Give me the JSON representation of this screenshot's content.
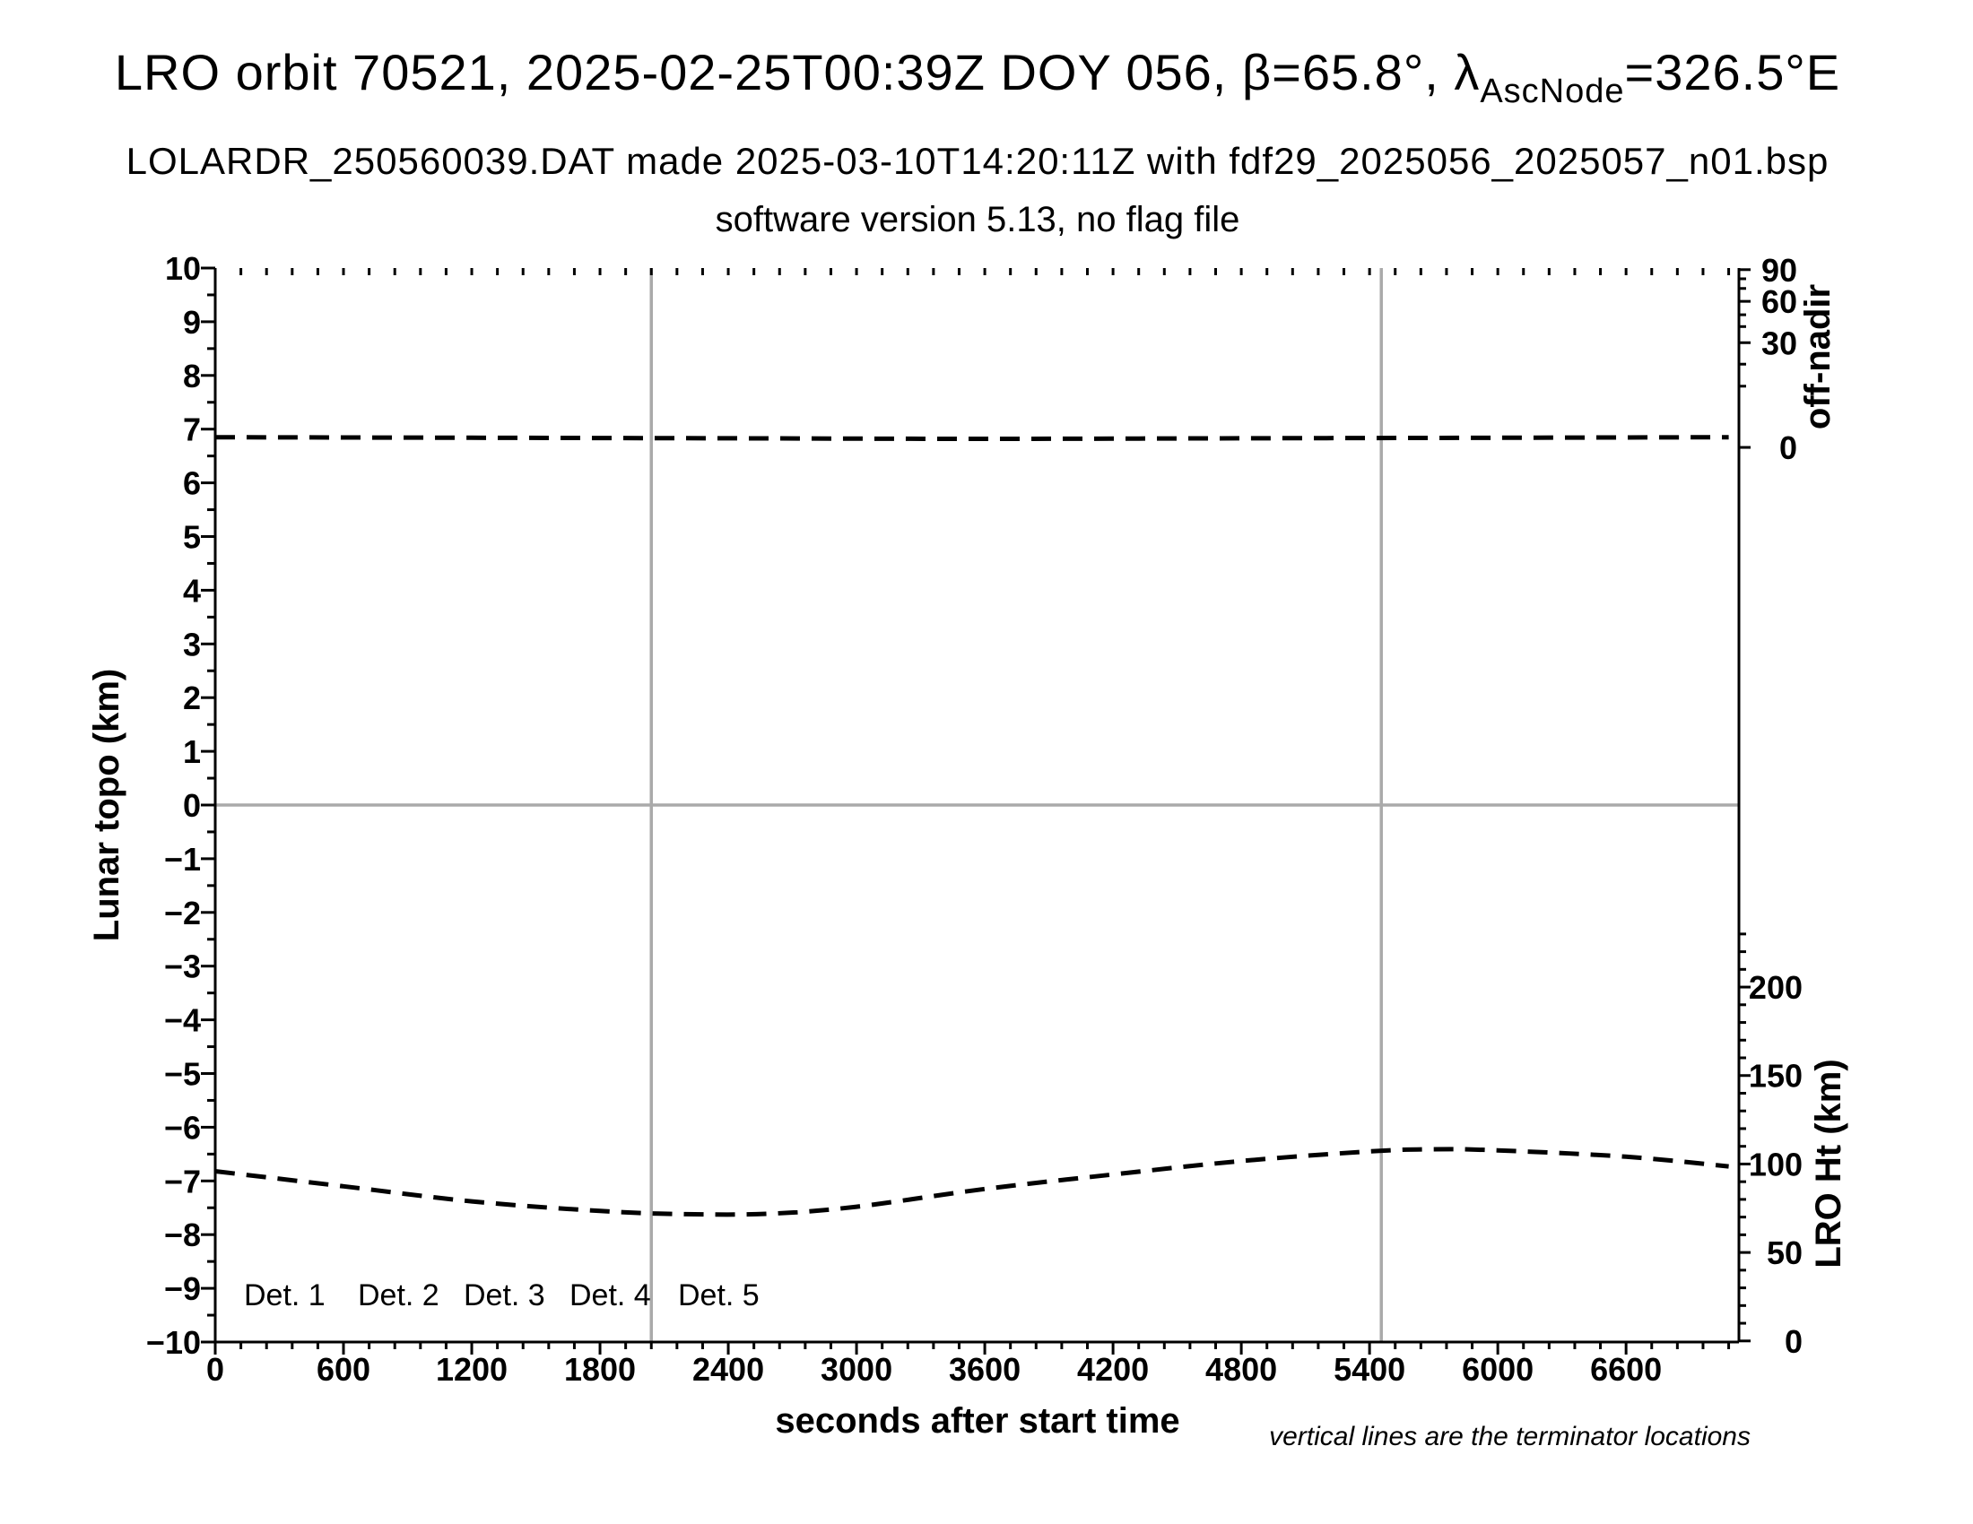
{
  "header": {
    "title_prefix": "LRO orbit 70521, 2025-02-25T00:39Z DOY 056, β=65.8°, λ",
    "title_subscript": "AscNode",
    "title_suffix": "=326.5°E",
    "subtitle": "LOLARDR_250560039.DAT made 2025-03-10T14:20:11Z with fdf29_2025056_2025057_n01.bsp",
    "subtitle2": "software version 5.13, no flag file"
  },
  "footnote": "vertical lines are the terminator locations",
  "legend": {
    "items": [
      {
        "label": "Det. 1",
        "color": "#000000"
      },
      {
        "label": "Det. 2",
        "color": "#0000ff"
      },
      {
        "label": "Det. 3",
        "color": "#00ee00"
      },
      {
        "label": "Det. 4",
        "color": "#ffa500"
      },
      {
        "label": "Det. 5",
        "color": "#ff0000"
      }
    ]
  },
  "colors": {
    "frame": "#000000",
    "gridline": "#aaaaaa",
    "curve": "#000000"
  },
  "chart_data": {
    "type": "line",
    "xlabel": "seconds after start time",
    "ylabel_left": "Lunar topo (km)",
    "ylabel_right_top": "off-nadir",
    "ylabel_right_bottom": "LRO Ht (km)",
    "xlim": [
      0,
      7128
    ],
    "ylim_left": [
      -10,
      10
    ],
    "x_major_ticks": [
      0,
      600,
      1200,
      1800,
      2400,
      3000,
      3600,
      4200,
      4800,
      5400,
      6000,
      6600
    ],
    "x_minor_step": 120,
    "y_major_step_left": 1,
    "y_minor_step_left": 0.5,
    "grid": "off",
    "zero_line_u": 0,
    "terminator_lines_sec": [
      2040,
      5455
    ],
    "right_top_axis": {
      "labels": [
        "90",
        "60",
        "30",
        "0"
      ],
      "label_u": [
        9.97,
        9.38,
        8.61,
        6.66
      ],
      "minor_u": [
        9.8,
        9.62,
        9.13,
        8.91,
        8.21,
        7.8
      ]
    },
    "right_bottom_axis": {
      "labels": [
        "200",
        "150",
        "100",
        "50",
        "0"
      ],
      "label_km": [
        200,
        150,
        100,
        50,
        0
      ],
      "u_at_0km": -9.98,
      "u_per_km": 0.03295,
      "minor_step_km": 10,
      "minor_max_km": 230
    },
    "series": [
      {
        "name": "off-nadir angle (Det. 1-5 overlapped, dashed)",
        "axis": "right-top",
        "style": "dashed",
        "color": "#000000",
        "points_topo_u": [
          [
            0,
            6.85
          ],
          [
            1200,
            6.84
          ],
          [
            2400,
            6.83
          ],
          [
            3600,
            6.82
          ],
          [
            4800,
            6.83
          ],
          [
            6000,
            6.84
          ],
          [
            7080,
            6.85
          ]
        ],
        "approx_value_deg": "just above 0 for entire orbit"
      },
      {
        "name": "LRO height (Det. 1-5 overlapped, dashed)",
        "axis": "right-bottom",
        "style": "dashed",
        "color": "#000000",
        "points_topo_u": [
          [
            0,
            -6.82
          ],
          [
            600,
            -7.1
          ],
          [
            1200,
            -7.38
          ],
          [
            1800,
            -7.56
          ],
          [
            2200,
            -7.62
          ],
          [
            2600,
            -7.61
          ],
          [
            3000,
            -7.48
          ],
          [
            3600,
            -7.15
          ],
          [
            4200,
            -6.88
          ],
          [
            4800,
            -6.63
          ],
          [
            5400,
            -6.45
          ],
          [
            5700,
            -6.41
          ],
          [
            6000,
            -6.43
          ],
          [
            6600,
            -6.55
          ],
          [
            7080,
            -6.73
          ]
        ],
        "approx_height_km": [
          [
            0,
            96
          ],
          [
            600,
            87
          ],
          [
            1200,
            79
          ],
          [
            1800,
            73
          ],
          [
            2200,
            72
          ],
          [
            2600,
            72
          ],
          [
            3000,
            76
          ],
          [
            3600,
            86
          ],
          [
            4200,
            94
          ],
          [
            4800,
            102
          ],
          [
            5400,
            107
          ],
          [
            5700,
            108
          ],
          [
            6000,
            108
          ],
          [
            6600,
            104
          ],
          [
            7080,
            99
          ]
        ]
      }
    ]
  }
}
